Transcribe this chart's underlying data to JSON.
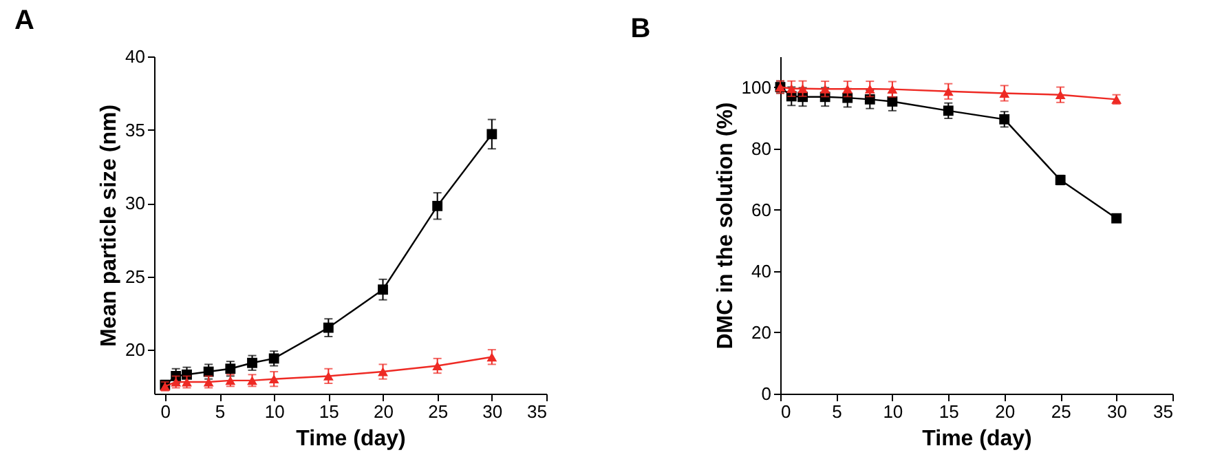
{
  "chart_data": [
    {
      "type": "line",
      "title": "A",
      "xlabel": "Time (day)",
      "ylabel": "Mean particle size (nm)",
      "x": [
        0,
        1,
        2,
        4,
        6,
        8,
        10,
        15,
        20,
        25,
        30
      ],
      "xlim": [
        -1,
        35
      ],
      "xticks": [
        0,
        5,
        10,
        15,
        20,
        25,
        30,
        35
      ],
      "ylim": [
        17,
        40
      ],
      "yticks": [
        20,
        25,
        30,
        35,
        40
      ],
      "series": [
        {
          "color": "#000000",
          "marker": "square",
          "values": [
            17.6,
            18.2,
            18.3,
            18.5,
            18.7,
            19.1,
            19.4,
            21.5,
            24.1,
            29.8,
            34.7
          ],
          "errors": [
            0.3,
            0.5,
            0.5,
            0.5,
            0.5,
            0.5,
            0.5,
            0.6,
            0.7,
            0.9,
            1.0
          ]
        },
        {
          "color": "#ee2a24",
          "marker": "triangle",
          "values": [
            17.5,
            17.8,
            17.8,
            17.8,
            17.9,
            17.9,
            18.0,
            18.2,
            18.5,
            18.9,
            19.5
          ],
          "errors": [
            0.3,
            0.4,
            0.4,
            0.4,
            0.4,
            0.4,
            0.5,
            0.5,
            0.5,
            0.5,
            0.5
          ]
        }
      ]
    },
    {
      "type": "line",
      "title": "B",
      "xlabel": "Time (day)",
      "ylabel": "DMC in the solution (%)",
      "x": [
        0,
        1,
        2,
        4,
        6,
        8,
        10,
        15,
        20,
        25,
        30
      ],
      "xlim": [
        0,
        35
      ],
      "xticks": [
        0,
        5,
        10,
        15,
        20,
        25,
        30,
        35
      ],
      "ylim": [
        0,
        110
      ],
      "yticks": [
        0,
        20,
        40,
        60,
        80,
        100
      ],
      "series": [
        {
          "color": "#000000",
          "marker": "square",
          "values": [
            100,
            97,
            96.8,
            96.8,
            96.5,
            96,
            95.3,
            92.3,
            89.5,
            69.7,
            57.2
          ],
          "errors": [
            2,
            3,
            3,
            3,
            3,
            3,
            3,
            2.5,
            2.5,
            1.5,
            1
          ]
        },
        {
          "color": "#ee2a24",
          "marker": "triangle",
          "values": [
            100,
            99.5,
            99.5,
            99.4,
            99.4,
            99.4,
            99.3,
            98.6,
            98,
            97.5,
            96
          ],
          "errors": [
            2,
            2.5,
            2.5,
            2.5,
            2.5,
            2.5,
            2.5,
            2.5,
            2.5,
            2.5,
            1.5
          ]
        }
      ]
    }
  ]
}
